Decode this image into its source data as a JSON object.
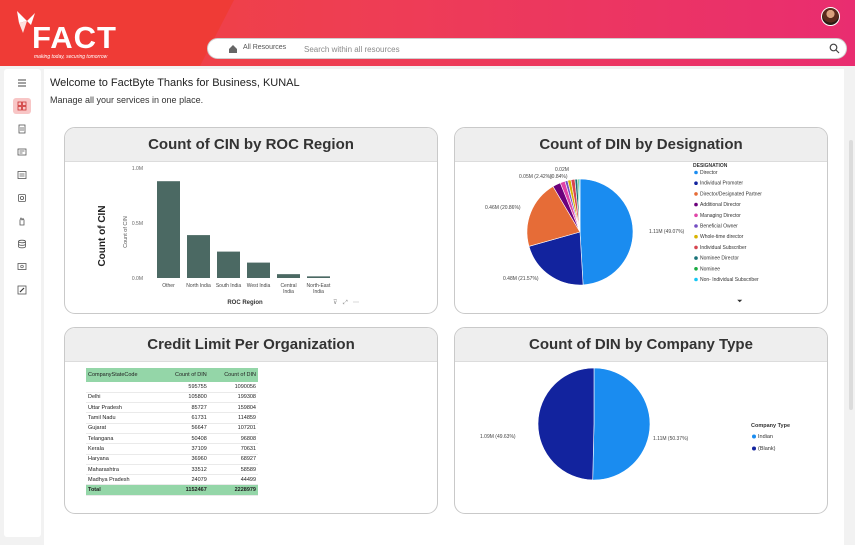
{
  "header": {
    "brand": "FACT",
    "tagline": "making today, securing tomorrow",
    "search_scope": "All Resources",
    "search_placeholder": "Search within all resources"
  },
  "sidebar": {
    "items": [
      "menu-toggle",
      "dashboard",
      "document",
      "report-1",
      "report-2",
      "settings-gear",
      "hand",
      "database",
      "monitor",
      "pen"
    ]
  },
  "welcome": {
    "title": "Welcome to FactByte Thanks for Business, KUNAL",
    "subtitle": "Manage all your services in one place."
  },
  "cards": {
    "cin_region": {
      "title": "Count of CIN by ROC Region"
    },
    "din_designation": {
      "title": "Count of DIN by Designation"
    },
    "credit_limit": {
      "title": "Credit Limit Per Organization"
    },
    "din_company_type": {
      "title": "Count of DIN by Company Type"
    }
  },
  "chart_data": [
    {
      "type": "bar",
      "title": "Count of CIN by ROC Region",
      "xlabel": "ROC Region",
      "ylabel": "Count of CIN",
      "ylabel_side": "Count of CIN",
      "categories": [
        "Other",
        "North India",
        "South India",
        "West India",
        "Central India",
        "North-East India"
      ],
      "values": [
        0.88,
        0.39,
        0.24,
        0.14,
        0.035,
        0.015
      ],
      "unit": "M",
      "ylim": [
        0,
        1.0
      ],
      "yticks": [
        "0.0M",
        "0.5M",
        "1.0M"
      ],
      "bar_color": "#4b6963"
    },
    {
      "type": "pie",
      "title": "Count of DIN by Designation",
      "legend_title": "DESIGNATION",
      "legend_position": "right",
      "slices": [
        {
          "name": "Director",
          "value": 49.07,
          "label": "1.11M (49.07%)",
          "color": "#1a8cf0"
        },
        {
          "name": "Individual Promoter",
          "value": 21.57,
          "label": "0.48M (21.57%)",
          "color": "#12239e"
        },
        {
          "name": "Director/Designated Partner",
          "value": 20.86,
          "label": "0.46M (20.86%)",
          "color": "#e66c37"
        },
        {
          "name": "Additional Director",
          "value": 2.42,
          "label": "0.05M (2.42%)",
          "color": "#6b007b"
        },
        {
          "name": "Managing Director",
          "value": 1.5,
          "label": "",
          "color": "#e044a7"
        },
        {
          "name": "Beneficial Owner",
          "value": 0.84,
          "label": "(0.84%)",
          "color": "#744ec2"
        },
        {
          "name": "Whole-time director",
          "value": 1.0,
          "label": "0.02M",
          "color": "#d9b300"
        },
        {
          "name": "Individual Subscriber",
          "value": 1.2,
          "label": "",
          "color": "#d64550"
        },
        {
          "name": "Nominee Director",
          "value": 0.8,
          "label": "",
          "color": "#197278"
        },
        {
          "name": "Nominee",
          "value": 0.4,
          "label": "",
          "color": "#1aab40"
        },
        {
          "name": "Non- Individual Subscriber",
          "value": 0.34,
          "label": "",
          "color": "#15c6f4"
        }
      ]
    },
    {
      "type": "table",
      "title": "Credit Limit Per Organization",
      "columns": [
        "CompanyStateCode",
        "Count of DIN",
        "Count of DIN"
      ],
      "rows": [
        [
          "",
          "595755",
          "1090056"
        ],
        [
          "Delhi",
          "105800",
          "199308"
        ],
        [
          "Uttar Pradesh",
          "85727",
          "159804"
        ],
        [
          "Tamil Nadu",
          "61731",
          "114859"
        ],
        [
          "Gujarat",
          "56647",
          "107201"
        ],
        [
          "Telangana",
          "50408",
          "96808"
        ],
        [
          "Kerala",
          "37109",
          "70631"
        ],
        [
          "Haryana",
          "36960",
          "68927"
        ],
        [
          "Maharashtra",
          "33512",
          "58589"
        ],
        [
          "Madhya Pradesh",
          "24079",
          "44499"
        ]
      ],
      "total": [
        "Total",
        "1152467",
        "2228979"
      ]
    },
    {
      "type": "pie",
      "title": "Count of DIN by Company Type",
      "legend_title": "Company Type",
      "legend_position": "right",
      "slices": [
        {
          "name": "Indian",
          "value": 50.37,
          "label": "1.11M (50.37%)",
          "color": "#1a8cf0"
        },
        {
          "name": "(Blank)",
          "value": 49.63,
          "label": "1.09M (49.63%)",
          "color": "#12239e"
        }
      ]
    }
  ]
}
